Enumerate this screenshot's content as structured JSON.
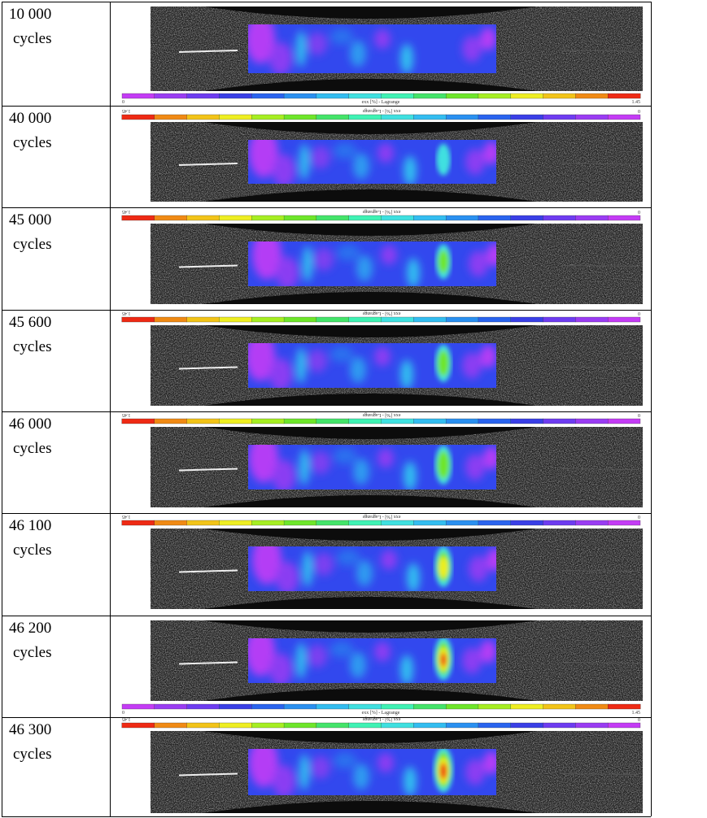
{
  "rows": [
    {
      "cycles": "10 000",
      "unit": "cycles",
      "colorbar": {
        "min": "0",
        "label": "exx [%] - Lagrange",
        "max": "1.45"
      }
    },
    {
      "cycles": "40 000",
      "unit": "cycles",
      "colorbar": {
        "min": "0",
        "label": "exx [%] - Lagrange",
        "max": "1.45"
      }
    },
    {
      "cycles": "45 000",
      "unit": "cycles",
      "colorbar": {
        "min": "0",
        "label": "exx [%] - Lagrange",
        "max": "1.45"
      }
    },
    {
      "cycles": "45 600",
      "unit": "cycles",
      "colorbar": {
        "min": "0",
        "label": "exx [%] - Lagrange",
        "max": "1.45"
      }
    },
    {
      "cycles": "46 000",
      "unit": "cycles",
      "colorbar": {
        "min": "0",
        "label": "exx [%] - Lagrange",
        "max": "1.45"
      }
    },
    {
      "cycles": "46 100",
      "unit": "cycles",
      "colorbar": {
        "min": "0",
        "label": "exx [%] - Lagrange",
        "max": "1.45"
      }
    },
    {
      "cycles": "46 200",
      "unit": "cycles",
      "colorbar": {
        "min": "0",
        "label": "exx [%] - Lagrange",
        "max": "1.45"
      }
    },
    {
      "cycles": "46 300",
      "unit": "cycles",
      "colorbar": {
        "min": "0",
        "label": "exx [%] - Lagrange",
        "max": "1.45"
      }
    }
  ]
}
